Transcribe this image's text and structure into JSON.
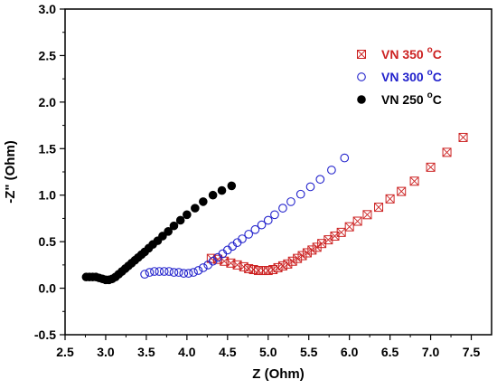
{
  "chart_data": {
    "type": "scatter",
    "title": "",
    "xlabel": "Z (Ohm)",
    "ylabel": "-Z\" (Ohm)",
    "xlim": [
      2.5,
      7.75
    ],
    "ylim": [
      -0.5,
      3.0
    ],
    "x_ticks": [
      "2.5",
      "3.0",
      "3.5",
      "4.0",
      "4.5",
      "5.0",
      "5.5",
      "6.0",
      "6.5",
      "7.0",
      "7.5"
    ],
    "y_ticks": [
      "-0.5",
      "0.0",
      "0.5",
      "1.0",
      "1.5",
      "2.0",
      "2.5",
      "3.0"
    ],
    "legend_position": "top-right",
    "series": [
      {
        "name": "VN 350 °C",
        "label_main": "VN 350 ",
        "label_sup": "o",
        "label_tail": "C",
        "color": "#cc2222",
        "marker": "crossed-square",
        "x": [
          4.3,
          4.38,
          4.46,
          4.54,
          4.62,
          4.7,
          4.76,
          4.82,
          4.88,
          4.94,
          5.0,
          5.06,
          5.12,
          5.18,
          5.24,
          5.3,
          5.36,
          5.42,
          5.48,
          5.54,
          5.6,
          5.66,
          5.74,
          5.82,
          5.9,
          6.0,
          6.1,
          6.22,
          6.36,
          6.5,
          6.64,
          6.8,
          7.0,
          7.2,
          7.4
        ],
        "y": [
          0.32,
          0.31,
          0.29,
          0.27,
          0.25,
          0.23,
          0.21,
          0.2,
          0.19,
          0.19,
          0.19,
          0.2,
          0.22,
          0.24,
          0.26,
          0.29,
          0.32,
          0.35,
          0.38,
          0.41,
          0.44,
          0.48,
          0.52,
          0.56,
          0.6,
          0.66,
          0.72,
          0.79,
          0.87,
          0.96,
          1.04,
          1.15,
          1.3,
          1.46,
          1.62
        ]
      },
      {
        "name": "VN 300 °C",
        "label_main": "VN 300 ",
        "label_sup": "o",
        "label_tail": "C",
        "color": "#2222cc",
        "marker": "open-circle",
        "x": [
          3.48,
          3.54,
          3.6,
          3.66,
          3.72,
          3.78,
          3.84,
          3.9,
          3.96,
          4.02,
          4.08,
          4.14,
          4.2,
          4.26,
          4.32,
          4.38,
          4.44,
          4.5,
          4.56,
          4.62,
          4.68,
          4.76,
          4.84,
          4.92,
          5.0,
          5.08,
          5.18,
          5.28,
          5.4,
          5.52,
          5.64,
          5.78,
          5.94
        ],
        "y": [
          0.15,
          0.17,
          0.18,
          0.18,
          0.18,
          0.18,
          0.17,
          0.17,
          0.16,
          0.16,
          0.17,
          0.19,
          0.22,
          0.25,
          0.29,
          0.33,
          0.37,
          0.41,
          0.45,
          0.49,
          0.53,
          0.58,
          0.63,
          0.68,
          0.73,
          0.79,
          0.86,
          0.93,
          1.01,
          1.09,
          1.17,
          1.27,
          1.4
        ]
      },
      {
        "name": "VN 250 °C",
        "label_main": "VN 250 ",
        "label_sup": "o",
        "label_tail": "C",
        "color": "#000000",
        "marker": "filled-circle",
        "x": [
          2.76,
          2.8,
          2.84,
          2.88,
          2.92,
          2.96,
          3.0,
          3.04,
          3.08,
          3.12,
          3.16,
          3.2,
          3.24,
          3.28,
          3.32,
          3.36,
          3.4,
          3.44,
          3.48,
          3.53,
          3.58,
          3.64,
          3.7,
          3.77,
          3.84,
          3.92,
          4.0,
          4.1,
          4.2,
          4.32,
          4.43,
          4.55
        ],
        "y": [
          0.12,
          0.12,
          0.12,
          0.12,
          0.11,
          0.1,
          0.09,
          0.09,
          0.1,
          0.12,
          0.15,
          0.18,
          0.21,
          0.24,
          0.27,
          0.3,
          0.33,
          0.36,
          0.39,
          0.43,
          0.47,
          0.51,
          0.56,
          0.61,
          0.67,
          0.73,
          0.79,
          0.86,
          0.93,
          1.0,
          1.05,
          1.1
        ]
      }
    ]
  }
}
